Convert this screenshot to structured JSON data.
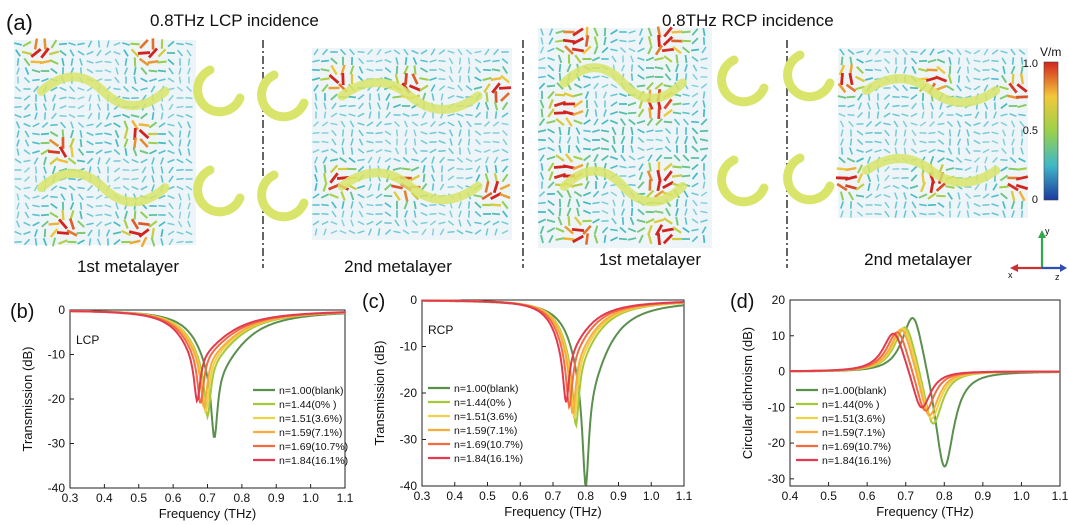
{
  "figure": {
    "panel_a": {
      "label": "(a)",
      "lcp_title": "0.8THz LCP incidence",
      "rcp_title": "0.8THz RCP incidence",
      "lcp_title_color": "#2f3fa0",
      "rcp_title_color": "#e0302a",
      "metalayers": [
        {
          "caption": "1st metalayer",
          "field": "weak-lcp-1"
        },
        {
          "caption": "2nd metalayer",
          "field": "weak-lcp-2"
        },
        {
          "caption": "1st metalayer",
          "field": "strong-rcp-1"
        },
        {
          "caption": "2nd metalayer",
          "field": "weak-rcp-2"
        }
      ],
      "colorbar": {
        "unit": "V/m",
        "ticks": [
          "1.0",
          "0.5",
          "0"
        ]
      },
      "axes": {
        "x": "x",
        "y": "y",
        "z": "z"
      }
    }
  },
  "colors": {
    "series": [
      "#5b8f4e",
      "#a6c93c",
      "#efd24a",
      "#f7ad3c",
      "#f06d42",
      "#e23a4f"
    ],
    "field_low": "#3fb8c8",
    "field_high": "#d3231f",
    "resonator": "#d8e56a"
  },
  "chart_data": [
    {
      "type": "line",
      "panel_label": "(b)",
      "annotation": "LCP",
      "xlabel": "Frequency (THz)",
      "ylabel": "Transmission (dB)",
      "xlim": [
        0.3,
        1.1
      ],
      "ylim": [
        -40,
        0
      ],
      "xticks": [
        "0.3",
        "0.4",
        "0.5",
        "0.6",
        "0.7",
        "0.8",
        "0.9",
        "1.0",
        "1.1"
      ],
      "yticks": [
        "0",
        "-10",
        "-20",
        "-30",
        "-40"
      ],
      "legend_position": "lower-right",
      "series": [
        {
          "name": "n=1.00(blank)",
          "dip_freq": 0.72,
          "dip_depth": -28.8,
          "width": 0.055,
          "base": 0
        },
        {
          "name": "n=1.44(0% )",
          "dip_freq": 0.7,
          "dip_depth": -24.0,
          "width": 0.058,
          "base": 0
        },
        {
          "name": "n=1.51(3.6%)",
          "dip_freq": 0.695,
          "dip_depth": -23.0,
          "width": 0.058,
          "base": 0
        },
        {
          "name": "n=1.59(7.1%)",
          "dip_freq": 0.69,
          "dip_depth": -22.0,
          "width": 0.06,
          "base": 0
        },
        {
          "name": "n=1.69(10.7%)",
          "dip_freq": 0.68,
          "dip_depth": -21.0,
          "width": 0.06,
          "base": 0
        },
        {
          "name": "n=1.84(16.1%)",
          "dip_freq": 0.67,
          "dip_depth": -20.5,
          "width": 0.06,
          "base": 0
        }
      ]
    },
    {
      "type": "line",
      "panel_label": "(c)",
      "annotation": "RCP",
      "xlabel": "Frequency (THz)",
      "ylabel": "Transmission (dB)",
      "xlim": [
        0.3,
        1.1
      ],
      "ylim": [
        -40,
        0
      ],
      "xticks": [
        "0.3",
        "0.4",
        "0.5",
        "0.6",
        "0.7",
        "0.8",
        "0.9",
        "1.0",
        "1.1"
      ],
      "yticks": [
        "0",
        "-10",
        "-20",
        "-30",
        "-40"
      ],
      "legend_position": "lower-left",
      "series": [
        {
          "name": "n=1.00(blank)",
          "dip_freq": 0.8,
          "dip_depth": -40.0,
          "width": 0.045,
          "base": 0
        },
        {
          "name": "n=1.44(0% )",
          "dip_freq": 0.77,
          "dip_depth": -27.0,
          "width": 0.045,
          "base": 0
        },
        {
          "name": "n=1.51(3.6%)",
          "dip_freq": 0.765,
          "dip_depth": -25.5,
          "width": 0.045,
          "base": 0
        },
        {
          "name": "n=1.59(7.1%)",
          "dip_freq": 0.76,
          "dip_depth": -24.5,
          "width": 0.045,
          "base": 0
        },
        {
          "name": "n=1.69(10.7%)",
          "dip_freq": 0.75,
          "dip_depth": -23.0,
          "width": 0.045,
          "base": 0
        },
        {
          "name": "n=1.84(16.1%)",
          "dip_freq": 0.74,
          "dip_depth": -22.0,
          "width": 0.045,
          "base": 0
        }
      ]
    },
    {
      "type": "line",
      "panel_label": "(d)",
      "xlabel": "Frequency (THz)",
      "ylabel": "Circular dichroism (dB)",
      "xlim": [
        0.4,
        1.1
      ],
      "ylim": [
        -32,
        20
      ],
      "xticks": [
        "0.4",
        "0.5",
        "0.6",
        "0.7",
        "0.8",
        "0.9",
        "1.0",
        "1.1"
      ],
      "yticks": [
        "20",
        "10",
        "0",
        "-10",
        "-20",
        "-30"
      ],
      "legend_position": "lower-left",
      "series": [
        {
          "name": "n=1.00(blank)",
          "peak_freq": 0.72,
          "peak_value": 18.5,
          "trough_freq": 0.8,
          "trough_value": -29.5
        },
        {
          "name": "n=1.44(0% )",
          "peak_freq": 0.7,
          "peak_value": 15.0,
          "trough_freq": 0.77,
          "trough_value": -17.5
        },
        {
          "name": "n=1.51(3.6%)",
          "peak_freq": 0.695,
          "peak_value": 14.5,
          "trough_freq": 0.765,
          "trough_value": -16.0
        },
        {
          "name": "n=1.59(7.1%)",
          "peak_freq": 0.69,
          "peak_value": 14.0,
          "trough_freq": 0.76,
          "trough_value": -15.0
        },
        {
          "name": "n=1.69(10.7%)",
          "peak_freq": 0.68,
          "peak_value": 13.0,
          "trough_freq": 0.75,
          "trough_value": -13.5
        },
        {
          "name": "n=1.84(16.1%)",
          "peak_freq": 0.67,
          "peak_value": 12.5,
          "trough_freq": 0.74,
          "trough_value": -12.5
        }
      ]
    }
  ]
}
